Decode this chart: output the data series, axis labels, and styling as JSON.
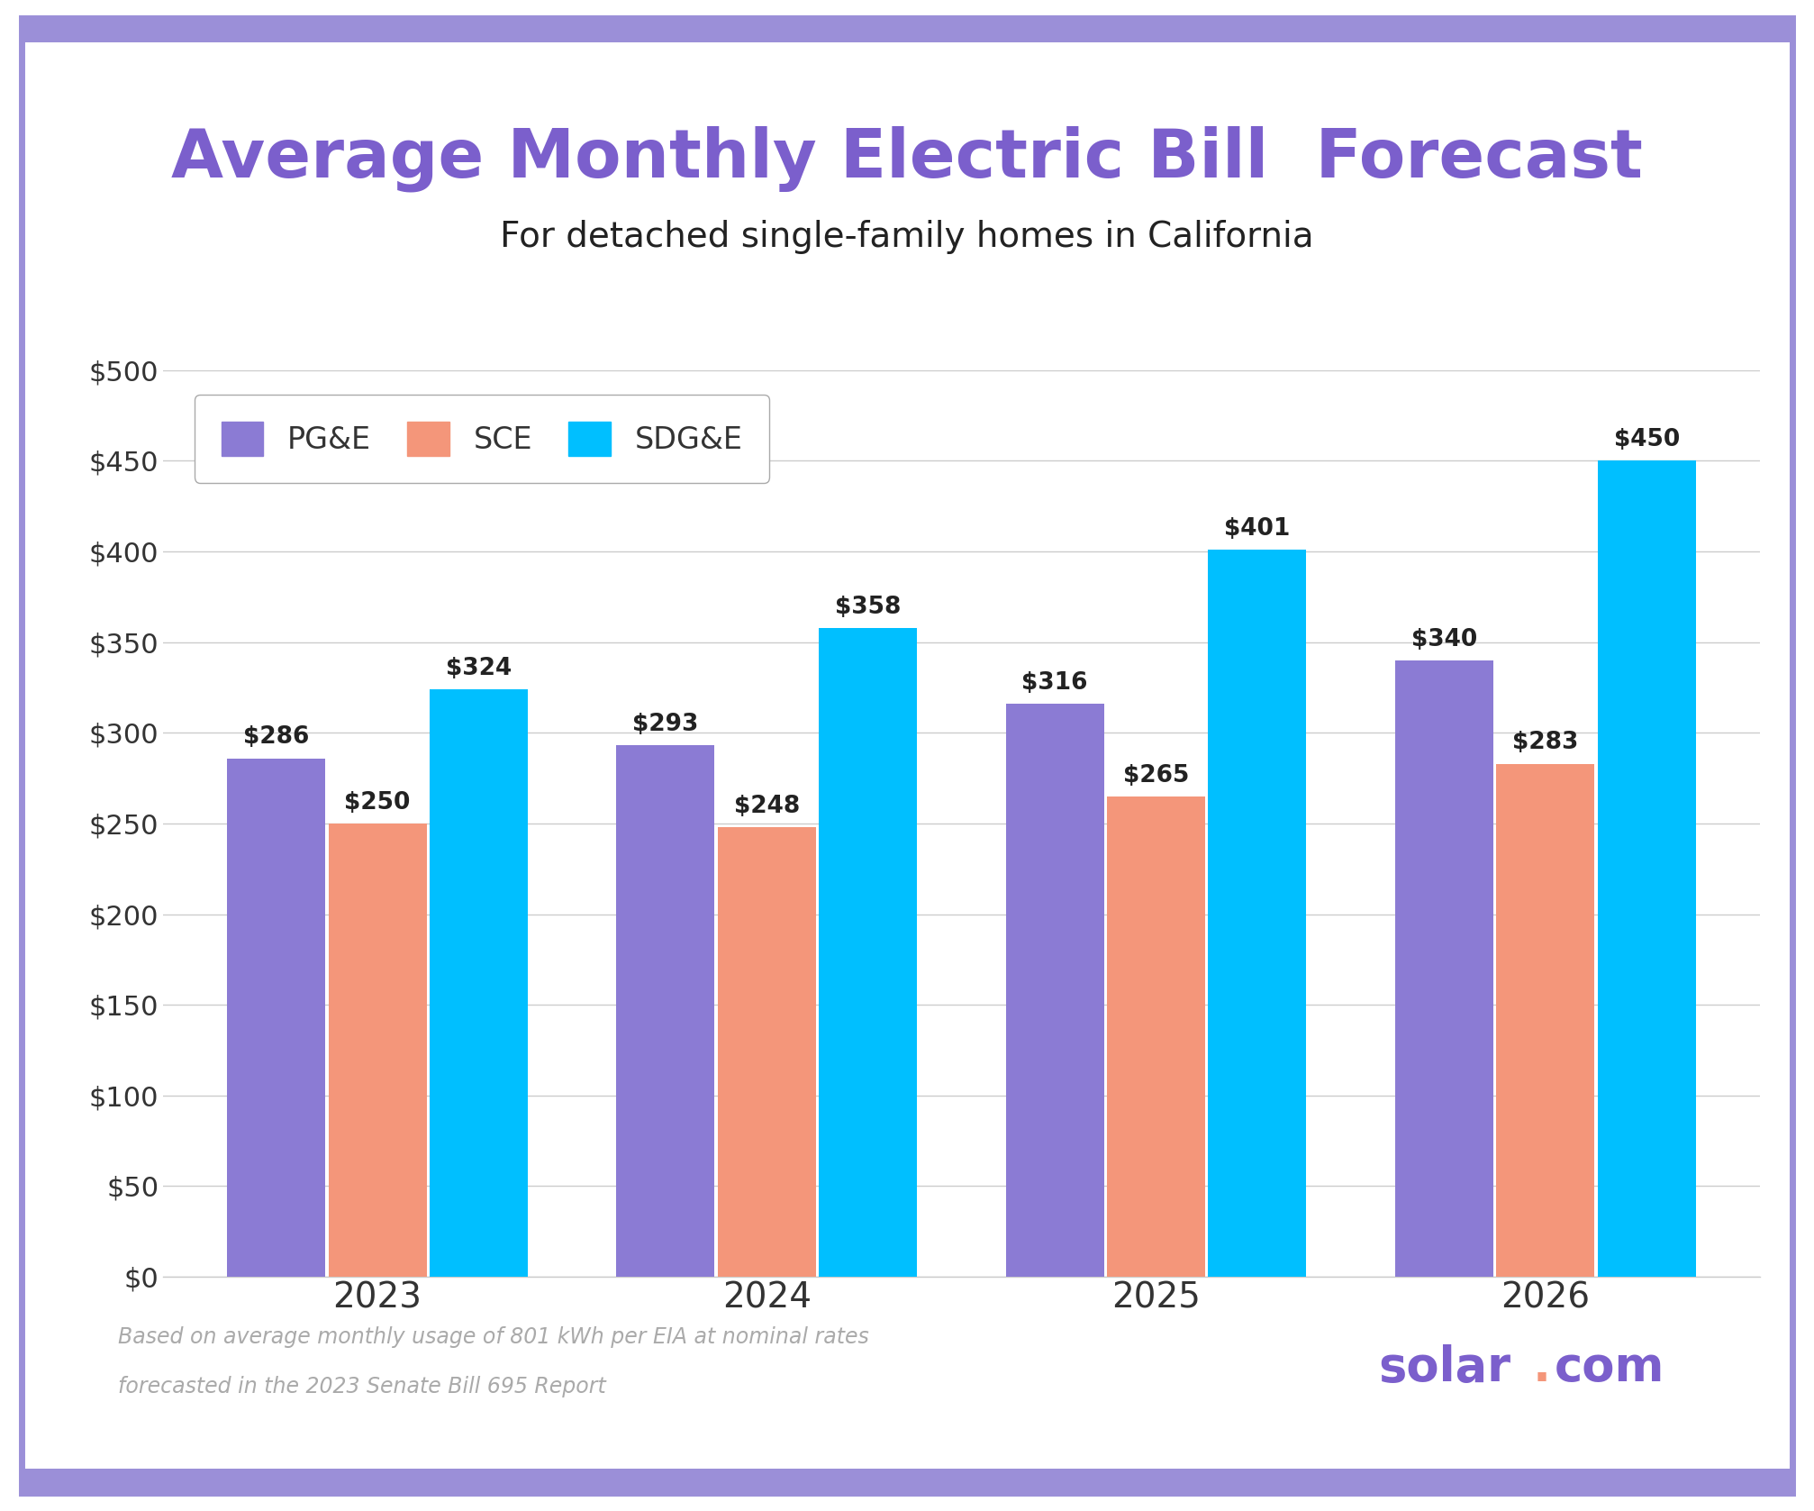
{
  "title": "Average Monthly Electric Bill  Forecast",
  "subtitle": "For detached single-family homes in California",
  "title_color": "#7B5FCC",
  "subtitle_color": "#222222",
  "categories": [
    "2023",
    "2024",
    "2025",
    "2026"
  ],
  "series": {
    "PG&E": [
      286,
      293,
      316,
      340
    ],
    "SCE": [
      250,
      248,
      265,
      283
    ],
    "SDG&E": [
      324,
      358,
      401,
      450
    ]
  },
  "bar_colors": {
    "PG&E": "#8B7BD4",
    "SCE": "#F4967A",
    "SDG&E": "#00BFFF"
  },
  "ylim": [
    0,
    500
  ],
  "yticks": [
    0,
    50,
    100,
    150,
    200,
    250,
    300,
    350,
    400,
    450,
    500
  ],
  "ytick_labels": [
    "$0",
    "$50",
    "$100",
    "$150",
    "$200",
    "$250",
    "$300",
    "$350",
    "$400",
    "$450",
    "$500"
  ],
  "footnote_line1": "Based on average monthly usage of 801 kWh per EIA at nominal rates",
  "footnote_line2": "forecasted in the 2023 Senate Bill 695 Report",
  "border_color": "#9B8FD8",
  "background_color": "#FFFFFF",
  "grid_color": "#CCCCCC",
  "bar_width": 0.26,
  "value_fontsize": 19,
  "title_fontsize": 54,
  "subtitle_fontsize": 28,
  "legend_fontsize": 24,
  "ytick_fontsize": 22,
  "xtick_fontsize": 28,
  "footnote_fontsize": 17,
  "solar_color": "#7B5FCC",
  "dot_color": "#F4967A"
}
